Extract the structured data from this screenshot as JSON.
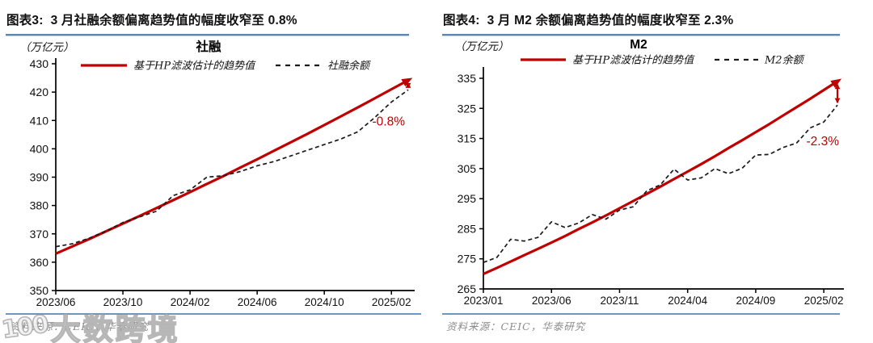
{
  "colors": {
    "trend_red": "#c00000",
    "series_black": "#1a1a1a",
    "divider_blue": "#5d87b3",
    "source_gray": "#8c8c8c",
    "axis_black": "#000000"
  },
  "watermark": {
    "logo": "100",
    "text": "大数跨境"
  },
  "chart_data": [
    {
      "type": "line",
      "header": "图表3:  3 月社融余额偏离趋势值的幅度收窄至 0.8%",
      "title": "社融",
      "unit_label": "（万亿元）",
      "legend": [
        "基于HP滤波估计的趋势值",
        "社融余额"
      ],
      "legend_position": "top",
      "grid": false,
      "annotation": "-0.8%",
      "source": "资料来源：CEIC，华泰研究",
      "ylim": [
        350,
        430
      ],
      "y_ticks": [
        350,
        360,
        370,
        380,
        390,
        400,
        410,
        420,
        430
      ],
      "x_labels": [
        "2023/06",
        "2023/10",
        "2024/02",
        "2024/06",
        "2024/10",
        "2025/02"
      ],
      "x_label_indices": [
        0,
        4,
        8,
        12,
        16,
        20
      ],
      "categories": [
        "2023/06",
        "2023/07",
        "2023/08",
        "2023/09",
        "2023/10",
        "2023/11",
        "2023/12",
        "2024/01",
        "2024/02",
        "2024/03",
        "2024/04",
        "2024/05",
        "2024/06",
        "2024/07",
        "2024/08",
        "2024/09",
        "2024/10",
        "2024/11",
        "2024/12",
        "2025/01",
        "2025/02",
        "2025/03"
      ],
      "series": [
        {
          "name": "基于HP滤波估计的趋势值",
          "style": "solid",
          "color": "#c00000",
          "values": [
            363.0,
            365.6,
            368.2,
            370.9,
            373.6,
            376.3,
            379.1,
            381.9,
            384.7,
            387.6,
            390.4,
            393.4,
            396.3,
            399.3,
            402.3,
            405.3,
            408.4,
            411.5,
            414.6,
            417.8,
            421.0,
            424.2
          ]
        },
        {
          "name": "社融余额",
          "style": "dashed",
          "color": "#1a1a1a",
          "values": [
            365.5,
            366.5,
            368.5,
            371.0,
            374.0,
            376.0,
            378.0,
            383.5,
            385.5,
            390.0,
            390.5,
            392.0,
            394.0,
            395.5,
            397.5,
            399.5,
            401.5,
            403.5,
            406.0,
            411.0,
            416.5,
            420.8
          ]
        }
      ]
    },
    {
      "type": "line",
      "header": "图表4:  3 月 M2 余额偏离趋势值的幅度收窄至 2.3%",
      "title": "M2",
      "unit_label": "（万亿元）",
      "legend": [
        "基于HP滤波估计的趋势值",
        "M2余额"
      ],
      "legend_position": "top",
      "grid": false,
      "annotation": "-2.3%",
      "source": "资料来源：CEIC，华泰研究",
      "ylim": [
        265,
        335
      ],
      "y_ticks": [
        265,
        275,
        285,
        295,
        305,
        315,
        325,
        335
      ],
      "x_labels": [
        "2023/01",
        "2023/06",
        "2023/11",
        "2024/04",
        "2024/09",
        "2025/02"
      ],
      "x_label_indices": [
        0,
        5,
        10,
        15,
        20,
        25
      ],
      "categories": [
        "2023/01",
        "2023/02",
        "2023/03",
        "2023/04",
        "2023/05",
        "2023/06",
        "2023/07",
        "2023/08",
        "2023/09",
        "2023/10",
        "2023/11",
        "2023/12",
        "2024/01",
        "2024/02",
        "2024/03",
        "2024/04",
        "2024/05",
        "2024/06",
        "2024/07",
        "2024/08",
        "2024/09",
        "2024/10",
        "2024/11",
        "2024/12",
        "2025/01",
        "2025/02",
        "2025/03"
      ],
      "series": [
        {
          "name": "基于HP滤波估计的趋势值",
          "style": "solid",
          "color": "#c00000",
          "values": [
            270.0,
            272.0,
            274.1,
            276.2,
            278.3,
            280.4,
            282.6,
            284.9,
            287.1,
            289.4,
            291.8,
            294.2,
            296.6,
            299.0,
            301.5,
            304.0,
            306.5,
            309.1,
            311.8,
            314.4,
            317.1,
            319.8,
            322.6,
            325.4,
            328.2,
            331.1,
            334.0
          ]
        },
        {
          "name": "M2余额",
          "style": "dashed",
          "color": "#1a1a1a",
          "values": [
            273.8,
            275.5,
            281.5,
            280.9,
            282.1,
            287.3,
            285.4,
            286.9,
            289.7,
            288.2,
            291.2,
            292.3,
            297.6,
            299.6,
            304.8,
            301.2,
            301.9,
            305.0,
            303.3,
            305.1,
            309.5,
            309.7,
            312.0,
            313.5,
            318.5,
            320.5,
            326.1
          ]
        }
      ]
    }
  ]
}
